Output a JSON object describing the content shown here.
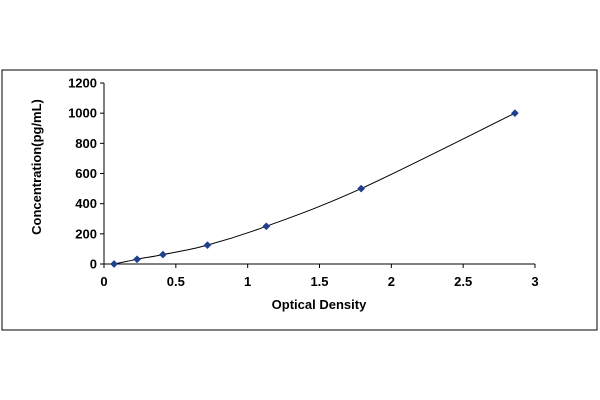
{
  "chart_data": {
    "type": "scatter",
    "title": "",
    "xlabel": "Optical Density",
    "ylabel": "Concentration(pg/mL)",
    "xlim": [
      0,
      3
    ],
    "ylim": [
      0,
      1200
    ],
    "x_ticks": [
      {
        "value": 0,
        "label": "0"
      },
      {
        "value": 0.5,
        "label": "0.5"
      },
      {
        "value": 1,
        "label": "1"
      },
      {
        "value": 1.5,
        "label": "1.5"
      },
      {
        "value": 2,
        "label": "2"
      },
      {
        "value": 2.5,
        "label": "2.5"
      },
      {
        "value": 3,
        "label": "3"
      }
    ],
    "y_ticks": [
      {
        "value": 0,
        "label": "0"
      },
      {
        "value": 200,
        "label": "200"
      },
      {
        "value": 400,
        "label": "400"
      },
      {
        "value": 600,
        "label": "600"
      },
      {
        "value": 800,
        "label": "800"
      },
      {
        "value": 1000,
        "label": "1000"
      },
      {
        "value": 1200,
        "label": "1200"
      }
    ],
    "grid": false,
    "legend": "none",
    "trendline": "smooth curve",
    "colors": {
      "marker": "#1f3f8f",
      "line": "#000000"
    },
    "points": [
      {
        "x": 0.07,
        "y": 0
      },
      {
        "x": 0.23,
        "y": 31.25
      },
      {
        "x": 0.41,
        "y": 62.5
      },
      {
        "x": 0.72,
        "y": 125
      },
      {
        "x": 1.13,
        "y": 250
      },
      {
        "x": 1.79,
        "y": 500
      },
      {
        "x": 2.86,
        "y": 1000
      }
    ]
  }
}
